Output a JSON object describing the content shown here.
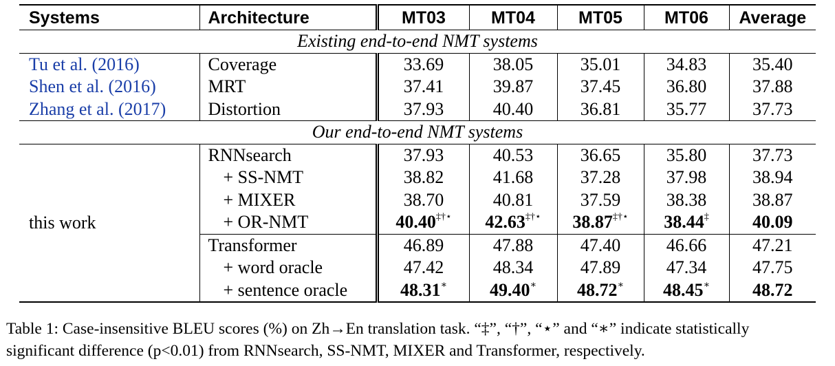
{
  "table": {
    "headers": [
      "Systems",
      "Architecture",
      "MT03",
      "MT04",
      "MT05",
      "MT06",
      "Average"
    ],
    "section1_title": "Existing end-to-end NMT systems",
    "section1_rows": [
      {
        "system": "Tu et al. (2016)",
        "arch": "Coverage",
        "vals": [
          "33.69",
          "38.05",
          "35.01",
          "34.83",
          "35.40"
        ]
      },
      {
        "system": "Shen et al. (2016)",
        "arch": "MRT",
        "vals": [
          "37.41",
          "39.87",
          "37.45",
          "36.80",
          "37.88"
        ]
      },
      {
        "system": "Zhang et al. (2017)",
        "arch": "Distortion",
        "vals": [
          "37.93",
          "40.40",
          "36.81",
          "35.77",
          "37.73"
        ]
      }
    ],
    "section2_title": "Our end-to-end NMT systems",
    "this_work": "this work",
    "rnn_rows": [
      {
        "arch": "RNNsearch",
        "vals": [
          "37.93",
          "40.53",
          "36.65",
          "35.80",
          "37.73"
        ]
      },
      {
        "arch": "+ SS-NMT",
        "vals": [
          "38.82",
          "41.68",
          "37.28",
          "37.98",
          "38.94"
        ]
      },
      {
        "arch": "+ MIXER",
        "vals": [
          "38.70",
          "40.81",
          "37.59",
          "38.38",
          "38.87"
        ]
      }
    ],
    "ornmt": {
      "arch": "+ OR-NMT",
      "vals": [
        "40.40",
        "42.63",
        "38.87",
        "38.44",
        "40.09"
      ],
      "marks": [
        "‡†⋆",
        "‡†⋆",
        "‡†⋆",
        "‡",
        ""
      ]
    },
    "trans_rows": [
      {
        "arch": "Transformer",
        "vals": [
          "46.89",
          "47.88",
          "47.40",
          "46.66",
          "47.21"
        ]
      },
      {
        "arch": "+ word oracle",
        "vals": [
          "47.42",
          "48.34",
          "47.89",
          "47.34",
          "47.75"
        ]
      }
    ],
    "sent": {
      "arch": "+ sentence oracle",
      "vals": [
        "48.31",
        "49.40",
        "48.72",
        "48.45",
        "48.72"
      ],
      "marks": [
        "∗",
        "∗",
        "∗",
        "∗",
        ""
      ]
    }
  },
  "caption_line1": "Table 1: Case-insensitive BLEU scores (%) on Zh→En translation task. “‡”, “†”, “⋆” and “∗” indicate statistically",
  "caption_line2": "significant difference (p<0.01) from RNNsearch, SS-NMT, MIXER and Transformer, respectively.",
  "colors": {
    "citation": "#1a3ea8"
  }
}
